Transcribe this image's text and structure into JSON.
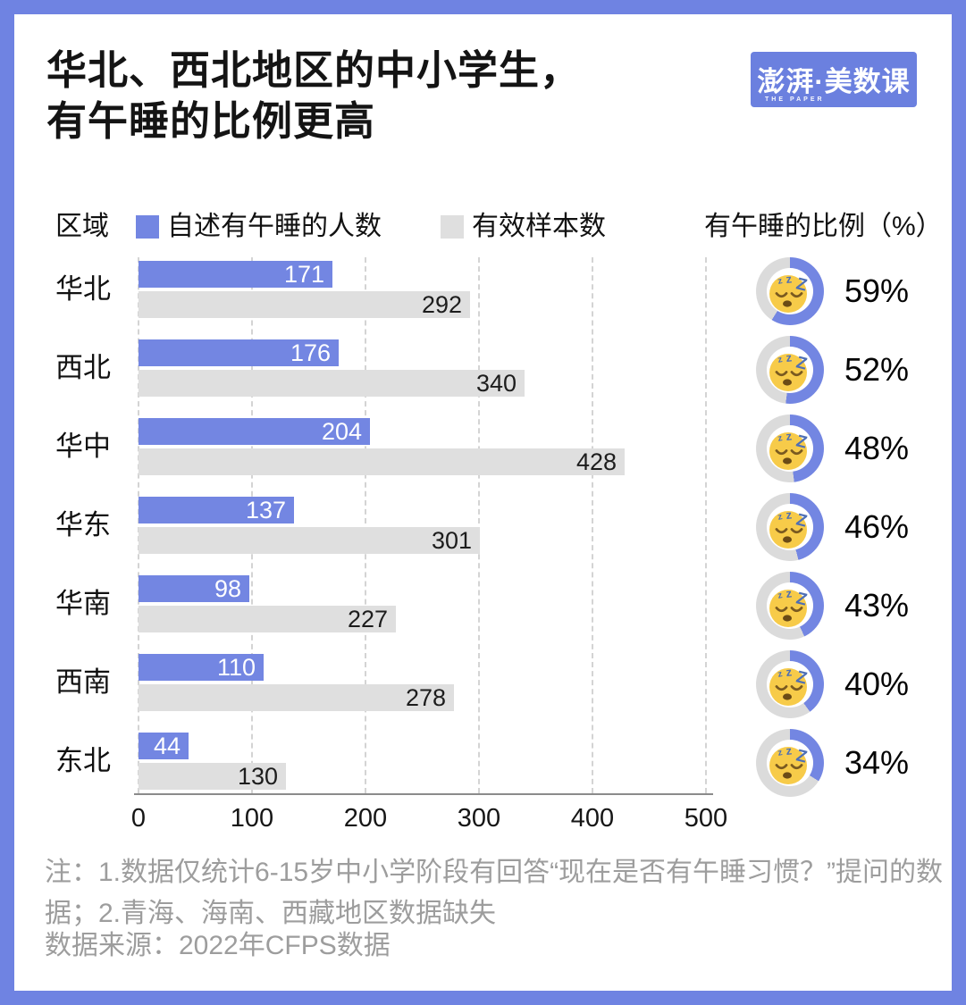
{
  "header": {
    "title_lines": [
      "华北、西北地区的中小学生，",
      "有午睡的比例更高"
    ],
    "logo": {
      "main": "澎湃·美数课",
      "sub": "THE PAPER",
      "bg_color": "#6B80DF"
    }
  },
  "legend": {
    "axis_label": "区域",
    "series": [
      {
        "label": "自述有午睡的人数",
        "color": "#7386E2"
      },
      {
        "label": "有效样本数",
        "color": "#DFDFDF"
      }
    ],
    "right_title": "有午睡的比例（%）"
  },
  "chart_data": {
    "type": "bar",
    "orientation": "horizontal",
    "title": "华北、西北地区的中小学生，有午睡的比例更高",
    "categories": [
      "华北",
      "西北",
      "华中",
      "华东",
      "华南",
      "西南",
      "东北"
    ],
    "series": [
      {
        "name": "自述有午睡的人数",
        "color": "#7386E2",
        "values": [
          171,
          176,
          204,
          137,
          98,
          110,
          44
        ]
      },
      {
        "name": "有效样本数",
        "color": "#DFDFDF",
        "values": [
          292,
          340,
          428,
          301,
          227,
          278,
          130
        ]
      }
    ],
    "nap_percentages": [
      59,
      52,
      48,
      46,
      43,
      40,
      34
    ],
    "percent_labels": [
      "59%",
      "52%",
      "48%",
      "46%",
      "43%",
      "40%",
      "34%"
    ],
    "x_ticks": [
      0,
      100,
      200,
      300,
      400,
      500
    ],
    "xlim": [
      0,
      500
    ],
    "grid": "vertical-dashed",
    "legend_position": "top",
    "right_column_title": "有午睡的比例（%）"
  },
  "donut": {
    "active_color": "#7386E2",
    "track_color": "#DBDBDB",
    "icon": "sleeping-face"
  },
  "footer": {
    "note_lines": [
      "注：1.数据仅统计6-15岁中小学阶段有回答“现在是否有午睡习惯？”提问的数",
      "据；2.青海、海南、西藏地区数据缺失"
    ],
    "source": "数据来源：2022年CFPS数据"
  },
  "colors": {
    "frame": "#6F83E2",
    "bar_blue": "#7386E2",
    "bar_gray": "#DFDFDF",
    "grid": "#D4D4D4",
    "axis": "#8B8B8B",
    "note_gray": "#9D9D9D"
  }
}
